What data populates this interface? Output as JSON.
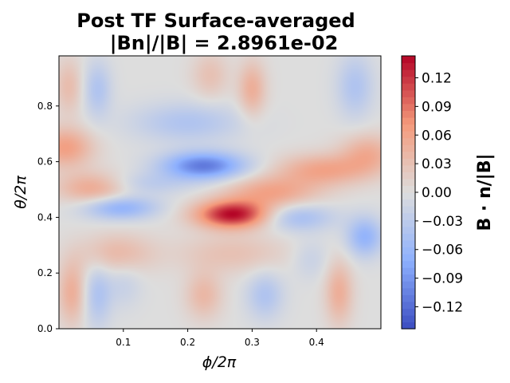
{
  "chart_data": {
    "type": "heatmap",
    "title_line1": "Post TF Surface-averaged",
    "title_line2": "|Bn|/|B| = 2.8961e-02",
    "xlabel": "ϕ/2π",
    "ylabel": "θ/2π",
    "colorbar_label": "B · n/|B|",
    "xlim": [
      0.0,
      0.5
    ],
    "ylim": [
      0.0,
      0.98
    ],
    "x_ticks": [
      0.1,
      0.2,
      0.3,
      0.4
    ],
    "x_tick_labels": [
      "0.1",
      "0.2",
      "0.3",
      "0.4"
    ],
    "y_ticks": [
      0.0,
      0.2,
      0.4,
      0.6,
      0.8
    ],
    "y_tick_labels": [
      "0.0",
      "0.2",
      "0.4",
      "0.6",
      "0.8"
    ],
    "colorbar_range": [
      -0.143,
      0.143
    ],
    "colorbar_ticks": [
      0.12,
      0.09,
      0.06,
      0.03,
      0.0,
      -0.03,
      -0.06,
      -0.09,
      -0.12
    ],
    "colorbar_tick_labels": [
      "0.12",
      "0.09",
      "0.06",
      "0.03",
      "0.00",
      "−0.03",
      "−0.06",
      "−0.09",
      "−0.12"
    ],
    "colormap": "coolwarm",
    "colormap_low": "#3b4cc0",
    "colormap_mid": "#dddddd",
    "colormap_high": "#b40426",
    "field_features": [
      {
        "phi": 0.27,
        "theta": 0.41,
        "value": 0.14,
        "sphi": 0.04,
        "stheta": 0.035
      },
      {
        "phi": 0.225,
        "theta": 0.585,
        "value": -0.11,
        "sphi": 0.045,
        "stheta": 0.035
      },
      {
        "phi": 0.095,
        "theta": 0.435,
        "value": -0.07,
        "sphi": 0.04,
        "stheta": 0.03
      },
      {
        "phi": 0.33,
        "theta": 0.49,
        "value": 0.06,
        "sphi": 0.05,
        "stheta": 0.04
      },
      {
        "phi": 0.055,
        "theta": 0.505,
        "value": 0.06,
        "sphi": 0.04,
        "stheta": 0.04
      },
      {
        "phi": 0.41,
        "theta": 0.57,
        "value": 0.06,
        "sphi": 0.05,
        "stheta": 0.04
      },
      {
        "phi": 0.01,
        "theta": 0.65,
        "value": 0.065,
        "sphi": 0.03,
        "stheta": 0.05
      },
      {
        "phi": 0.48,
        "theta": 0.63,
        "value": 0.05,
        "sphi": 0.03,
        "stheta": 0.05
      },
      {
        "phi": 0.37,
        "theta": 0.4,
        "value": -0.05,
        "sphi": 0.04,
        "stheta": 0.035
      },
      {
        "phi": 0.2,
        "theta": 0.74,
        "value": -0.04,
        "sphi": 0.06,
        "stheta": 0.05
      },
      {
        "phi": 0.13,
        "theta": 0.52,
        "value": -0.03,
        "sphi": 0.05,
        "stheta": 0.03
      },
      {
        "phi": 0.3,
        "theta": 0.86,
        "value": 0.05,
        "sphi": 0.015,
        "stheta": 0.07
      },
      {
        "phi": 0.06,
        "theta": 0.86,
        "value": -0.04,
        "sphi": 0.015,
        "stheta": 0.07
      },
      {
        "phi": 0.46,
        "theta": 0.87,
        "value": -0.04,
        "sphi": 0.02,
        "stheta": 0.08
      },
      {
        "phi": 0.235,
        "theta": 0.91,
        "value": 0.03,
        "sphi": 0.02,
        "stheta": 0.06
      },
      {
        "phi": 0.015,
        "theta": 0.87,
        "value": 0.035,
        "sphi": 0.015,
        "stheta": 0.07
      },
      {
        "phi": 0.02,
        "theta": 0.13,
        "value": 0.05,
        "sphi": 0.015,
        "stheta": 0.08
      },
      {
        "phi": 0.09,
        "theta": 0.27,
        "value": 0.04,
        "sphi": 0.04,
        "stheta": 0.05
      },
      {
        "phi": 0.27,
        "theta": 0.27,
        "value": 0.03,
        "sphi": 0.06,
        "stheta": 0.05
      },
      {
        "phi": 0.435,
        "theta": 0.13,
        "value": 0.05,
        "sphi": 0.015,
        "stheta": 0.08
      },
      {
        "phi": 0.225,
        "theta": 0.12,
        "value": 0.04,
        "sphi": 0.02,
        "stheta": 0.06
      },
      {
        "phi": 0.06,
        "theta": 0.12,
        "value": -0.04,
        "sphi": 0.015,
        "stheta": 0.08
      },
      {
        "phi": 0.32,
        "theta": 0.12,
        "value": -0.04,
        "sphi": 0.02,
        "stheta": 0.06
      },
      {
        "phi": 0.475,
        "theta": 0.33,
        "value": -0.065,
        "sphi": 0.02,
        "stheta": 0.05
      },
      {
        "phi": 0.1,
        "theta": 0.16,
        "value": -0.02,
        "sphi": 0.02,
        "stheta": 0.06
      },
      {
        "phi": 0.39,
        "theta": 0.25,
        "value": -0.02,
        "sphi": 0.02,
        "stheta": 0.05
      }
    ]
  }
}
